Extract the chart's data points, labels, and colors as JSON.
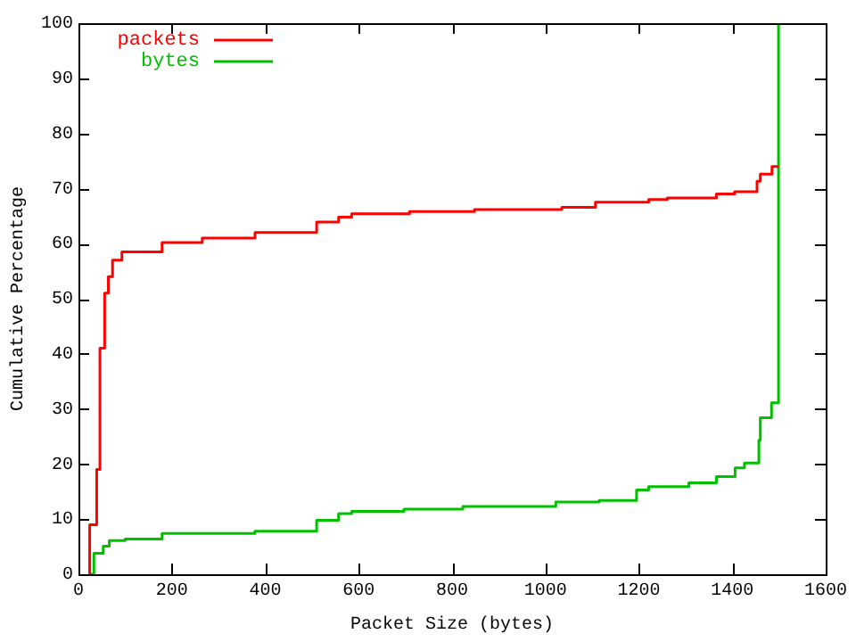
{
  "chart_data": {
    "type": "step",
    "xlabel": "Packet Size (bytes)",
    "ylabel": "Cumulative Percentage",
    "xlim": [
      0,
      1600
    ],
    "ylim": [
      0,
      100
    ],
    "xticks": [
      0,
      200,
      400,
      600,
      800,
      1000,
      1200,
      1400,
      1600
    ],
    "yticks": [
      0,
      10,
      20,
      30,
      40,
      50,
      60,
      70,
      80,
      90,
      100
    ],
    "grid": false,
    "legend": "top left",
    "line_style": "solid",
    "marker": "none",
    "series": [
      {
        "name": "packets",
        "color": "#ff0000",
        "x": [
          24,
          39,
          46,
          56,
          64,
          73,
          93,
          179,
          265,
          378,
          510,
          557,
          585,
          709,
          848,
          1035,
          1107,
          1221,
          1261,
          1366,
          1405,
          1453,
          1460,
          1485,
          1499
        ],
        "values": [
          0,
          9,
          19,
          41,
          51,
          54,
          57,
          58.5,
          60.2,
          61,
          62,
          63.9,
          64.8,
          65.4,
          65.8,
          66.2,
          66.6,
          67.5,
          68,
          68.3,
          69,
          69.4,
          71.3,
          72.6,
          74
        ]
      },
      {
        "name": "bytes",
        "color": "#00c000",
        "x": [
          24,
          33,
          53,
          66,
          100,
          179,
          378,
          510,
          557,
          585,
          697,
          823,
          1022,
          1115,
          1195,
          1221,
          1307,
          1366,
          1406,
          1426,
          1457,
          1460,
          1484,
          1499,
          1500
        ],
        "values": [
          0,
          0,
          3.8,
          5.1,
          6.1,
          6.4,
          7.4,
          7.8,
          9.8,
          11,
          11.4,
          11.8,
          12.3,
          13.1,
          13.4,
          15.3,
          15.9,
          16.6,
          17.7,
          19.3,
          20.2,
          24.3,
          28.4,
          31.1,
          100
        ]
      }
    ]
  }
}
